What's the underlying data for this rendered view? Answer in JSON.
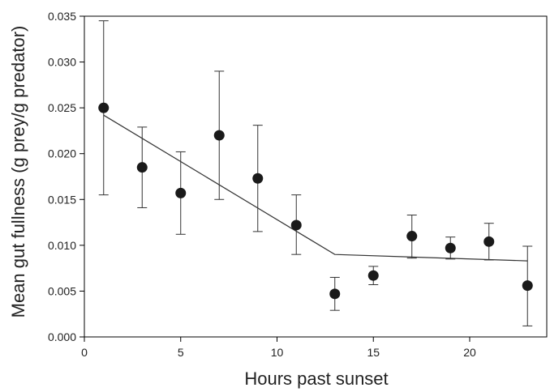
{
  "chart_data": {
    "type": "scatter",
    "title": "",
    "xlabel": "Hours past sunset",
    "ylabel": "Mean gut fullness (g prey/g predator)",
    "xlim": [
      0,
      24
    ],
    "ylim": [
      0,
      0.035
    ],
    "xticks": [
      0,
      5,
      10,
      15,
      20
    ],
    "yticks": [
      "0.000",
      "0.005",
      "0.010",
      "0.015",
      "0.020",
      "0.025",
      "0.030",
      "0.035"
    ],
    "grid": false,
    "legend": "none",
    "colors": {
      "points": "#1a1a1a",
      "line": "#333333",
      "axis": "#000000"
    },
    "points": [
      {
        "x": 1,
        "y": 0.025,
        "err_low": 0.0155,
        "err_high": 0.0345
      },
      {
        "x": 3,
        "y": 0.0185,
        "err_low": 0.0141,
        "err_high": 0.0229
      },
      {
        "x": 5,
        "y": 0.0157,
        "err_low": 0.0112,
        "err_high": 0.0202
      },
      {
        "x": 7,
        "y": 0.022,
        "err_low": 0.015,
        "err_high": 0.029
      },
      {
        "x": 9,
        "y": 0.0173,
        "err_low": 0.0115,
        "err_high": 0.0231
      },
      {
        "x": 11,
        "y": 0.0122,
        "err_low": 0.009,
        "err_high": 0.0155
      },
      {
        "x": 13,
        "y": 0.0047,
        "err_low": 0.0029,
        "err_high": 0.0065
      },
      {
        "x": 15,
        "y": 0.0067,
        "err_low": 0.0057,
        "err_high": 0.0077
      },
      {
        "x": 17,
        "y": 0.011,
        "err_low": 0.0086,
        "err_high": 0.0133
      },
      {
        "x": 19,
        "y": 0.0097,
        "err_low": 0.0085,
        "err_high": 0.0109
      },
      {
        "x": 21,
        "y": 0.0104,
        "err_low": 0.0084,
        "err_high": 0.0124
      },
      {
        "x": 23,
        "y": 0.0056,
        "err_low": 0.0012,
        "err_high": 0.0099
      }
    ],
    "fit_line": [
      {
        "x": 1,
        "y": 0.0242
      },
      {
        "x": 13,
        "y": 0.009
      },
      {
        "x": 23,
        "y": 0.0083
      }
    ]
  }
}
